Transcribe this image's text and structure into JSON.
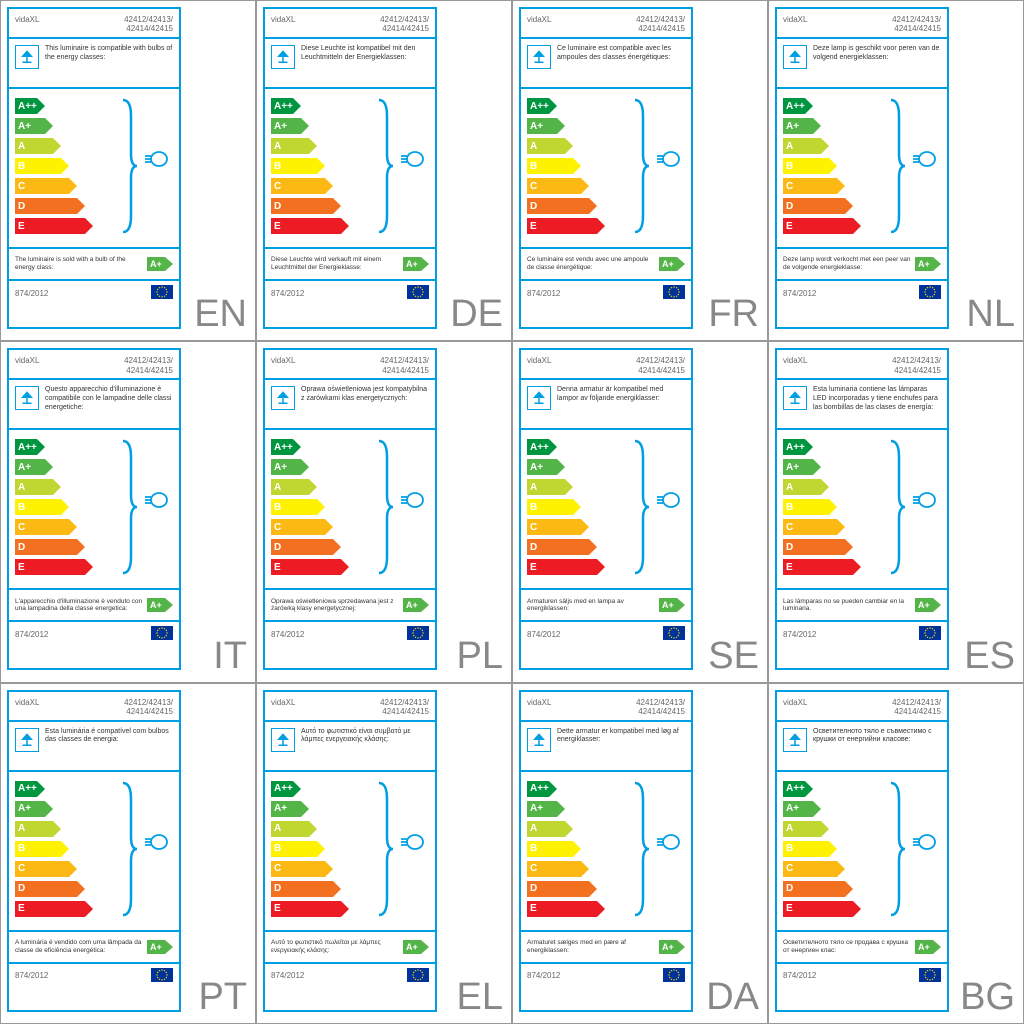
{
  "brand": "vidaXL",
  "model_line1": "42412/42413/",
  "model_line2": "42414/42415",
  "regulation": "874/2012",
  "sold_class": "A+",
  "sold_class_color": "#53b447",
  "brace_color": "#009fe3",
  "bulb_stroke": "#009fe3",
  "classes": [
    {
      "label": "A++",
      "width": 22,
      "color": "#009640"
    },
    {
      "label": "A+",
      "width": 30,
      "color": "#53b447"
    },
    {
      "label": "A",
      "width": 38,
      "color": "#bfd730"
    },
    {
      "label": "B",
      "width": 46,
      "color": "#fff200"
    },
    {
      "label": "C",
      "width": 54,
      "color": "#fdb913"
    },
    {
      "label": "D",
      "width": 62,
      "color": "#f37021"
    },
    {
      "label": "E",
      "width": 70,
      "color": "#ed1c24"
    }
  ],
  "labels": [
    {
      "lang": "EN",
      "desc": "This luminaire is compatible with bulbs of the energy classes:",
      "sold": "The luminaire is sold with a bulb of the energy class:"
    },
    {
      "lang": "DE",
      "desc": "Diese Leuchte ist kompatibel mit den Leuchtmitteln der Energieklassen:",
      "sold": "Diese Leuchte wird verkauft mit einem Leuchtmittel der Energieklasse:"
    },
    {
      "lang": "FR",
      "desc": "Ce luminaire est compatible avec les ampoules des classes énergétiques:",
      "sold": "Ce luminaire est vendu avec une ampoule de classe énergétique:"
    },
    {
      "lang": "NL",
      "desc": "Deze lamp is geschikt voor peren van de volgend energieklassen:",
      "sold": "Deze lamp wordt verkocht met een peer van de volgende energieklasse:"
    },
    {
      "lang": "IT",
      "desc": "Questo apparecchio d'illuminazione è compatibile con le lampadine delle classi energetiche:",
      "sold": "L'apparecchio d'illuminazione è venduto con una lampadina della classe energetica:"
    },
    {
      "lang": "PL",
      "desc": "Oprawa oświetleniowa jest kompatybilna z żarówkami klas energetycznych:",
      "sold": "Oprawa oświetleniowa sprzedawana jest z żarówką klasy energetycznej:"
    },
    {
      "lang": "SE",
      "desc": "Denna armatur är kompatibel med lampor av följande energiklasser:",
      "sold": "Armaturen säljs med en lampa av energiklassen:"
    },
    {
      "lang": "ES",
      "desc": "Esta luminaria contiene las lámparas LED incorporadas y tiene enchufes para las bombillas de las clases de energía:",
      "sold": "Las lámparas no se pueden cambiar en la luminaria."
    },
    {
      "lang": "PT",
      "desc": "Esta luminária é compatível com bulbos das classes de energia:",
      "sold": "A luminária é vendido com uma lâmpada da classe de eficiência energética:"
    },
    {
      "lang": "EL",
      "desc": "Αυτό το φωτιστικό είναι συμβατό με λάμπες ενεργειακής κλάσης:",
      "sold": "Αυτό το φωτιστικό πωλείται με λάμπες ενεργειακής κλάσης:"
    },
    {
      "lang": "DA",
      "desc": "Dette armatur er kompatibel med løg af energiklasser:",
      "sold": "Armaturet sælges med en pære af energiklassen:"
    },
    {
      "lang": "BG",
      "desc": "Осветителното тяло е съвместимо с крушки от енергийни класове:",
      "sold": "Осветителното тяло се продава с крушка от енергиен клас:"
    }
  ]
}
